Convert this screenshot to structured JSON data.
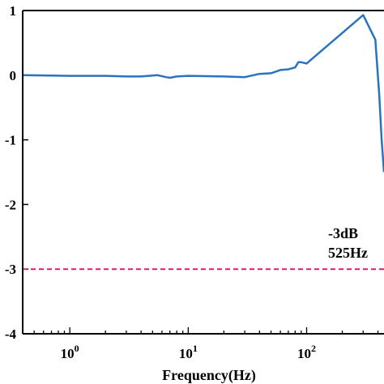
{
  "chart_data": {
    "type": "line",
    "xlabel": "Frequency(Hz)",
    "ylabel": "",
    "x_scale": "log",
    "xlim": [
      0.4,
      450
    ],
    "ylim": [
      -4,
      1
    ],
    "y_ticks": [
      1,
      0,
      -1,
      -2,
      -3,
      -4
    ],
    "y_tick_labels": [
      "1",
      "0",
      "-1",
      "-2",
      "-3",
      "-4"
    ],
    "x_ticks": [
      1,
      10,
      100
    ],
    "x_tick_labels": [
      {
        "base": "10",
        "exp": "0"
      },
      {
        "base": "10",
        "exp": "1"
      },
      {
        "base": "10",
        "exp": "2"
      }
    ],
    "series": [
      {
        "color": "#2a73be",
        "points": [
          [
            0.4,
            0.0
          ],
          [
            1.0,
            -0.01
          ],
          [
            2.0,
            -0.01
          ],
          [
            3.0,
            -0.02
          ],
          [
            4.0,
            -0.02
          ],
          [
            5.5,
            0.0
          ],
          [
            6.5,
            -0.03
          ],
          [
            7.0,
            -0.04
          ],
          [
            8.0,
            -0.02
          ],
          [
            10.0,
            -0.01
          ],
          [
            20.0,
            -0.02
          ],
          [
            30.0,
            -0.03
          ],
          [
            40.0,
            0.02
          ],
          [
            50.0,
            0.03
          ],
          [
            60.0,
            0.08
          ],
          [
            70.0,
            0.09
          ],
          [
            80.0,
            0.12
          ],
          [
            85.0,
            0.2
          ],
          [
            90.0,
            0.2
          ],
          [
            100.0,
            0.18
          ],
          [
            300.0,
            0.93
          ],
          [
            380.0,
            0.55
          ],
          [
            410.0,
            -0.3
          ],
          [
            430.0,
            -1.0
          ],
          [
            450.0,
            -1.5
          ]
        ]
      }
    ],
    "reference_line": {
      "y": -3,
      "color": "#d4206e",
      "style": "dashed"
    },
    "annotations": [
      "-3dB",
      "525Hz"
    ],
    "grid": false
  }
}
